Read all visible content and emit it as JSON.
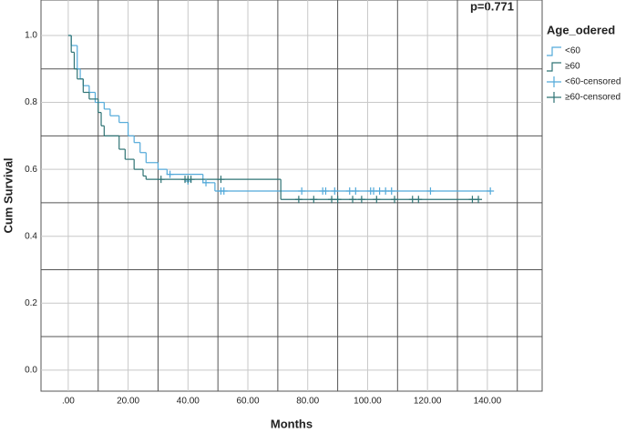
{
  "chart_data": {
    "type": "survival",
    "title": "p=0.771",
    "legend_title": "Age_odered",
    "xlabel": "Months",
    "ylabel": "Cum Survival",
    "xlim": [
      -9.1,
      158.3
    ],
    "ylim": [
      -0.063,
      1.106
    ],
    "xticks": [
      {
        "value": 0,
        "label": ".00"
      },
      {
        "value": 20,
        "label": "20.00"
      },
      {
        "value": 40,
        "label": "40.00"
      },
      {
        "value": 60,
        "label": "60.00"
      },
      {
        "value": 80,
        "label": "80.00"
      },
      {
        "value": 100,
        "label": "100.00"
      },
      {
        "value": 120,
        "label": "120.00"
      },
      {
        "value": 140,
        "label": "140.00"
      }
    ],
    "yticks": [
      {
        "value": 0,
        "label": "0.0"
      },
      0.2,
      0.4,
      0.6,
      0.8,
      {
        "value": 1,
        "label": "1.0"
      }
    ],
    "x_minor_grid": [
      10,
      30,
      50,
      70,
      90,
      110,
      130,
      150
    ],
    "y_minor_grid": [
      0.1,
      0.3,
      0.5,
      0.7,
      0.9
    ],
    "series": [
      {
        "name": "<60",
        "color": "#52a9d9",
        "style": "step",
        "x": [
          0,
          1,
          3,
          4,
          5,
          7,
          9,
          12,
          14,
          17,
          20,
          22,
          24,
          26,
          30,
          33,
          45,
          49,
          141
        ],
        "values": [
          1.0,
          0.97,
          0.9,
          0.87,
          0.85,
          0.83,
          0.8,
          0.78,
          0.76,
          0.74,
          0.7,
          0.68,
          0.65,
          0.62,
          0.6,
          0.585,
          0.56,
          0.535,
          0.535
        ]
      },
      {
        "name": "≥60",
        "color": "#2e7374",
        "style": "step",
        "x": [
          0,
          1,
          2,
          3,
          5,
          7,
          10,
          11,
          12,
          17,
          19,
          22,
          25,
          26,
          71,
          137
        ],
        "values": [
          1.0,
          0.95,
          0.9,
          0.87,
          0.83,
          0.81,
          0.77,
          0.73,
          0.7,
          0.66,
          0.63,
          0.6,
          0.58,
          0.57,
          0.51,
          0.51
        ]
      },
      {
        "name": "<60-censored",
        "color": "#52a9d9",
        "style": "censored",
        "x": [
          34,
          40,
          46,
          51,
          52,
          78,
          85,
          86,
          89,
          94,
          96,
          101,
          102,
          104,
          106,
          108,
          121,
          141
        ],
        "values": [
          0.585,
          0.565,
          0.56,
          0.535,
          0.535,
          0.535,
          0.535,
          0.535,
          0.535,
          0.535,
          0.535,
          0.535,
          0.535,
          0.535,
          0.535,
          0.535,
          0.535,
          0.535
        ]
      },
      {
        "name": "≥60-censored",
        "color": "#2e7374",
        "style": "censored",
        "x": [
          31,
          39,
          40,
          41,
          51,
          77,
          82,
          88,
          90,
          95,
          98,
          103,
          109,
          115,
          117,
          135,
          137
        ],
        "values": [
          0.57,
          0.57,
          0.57,
          0.57,
          0.57,
          0.51,
          0.51,
          0.51,
          0.51,
          0.51,
          0.51,
          0.51,
          0.51,
          0.51,
          0.51,
          0.51,
          0.51
        ]
      }
    ]
  }
}
